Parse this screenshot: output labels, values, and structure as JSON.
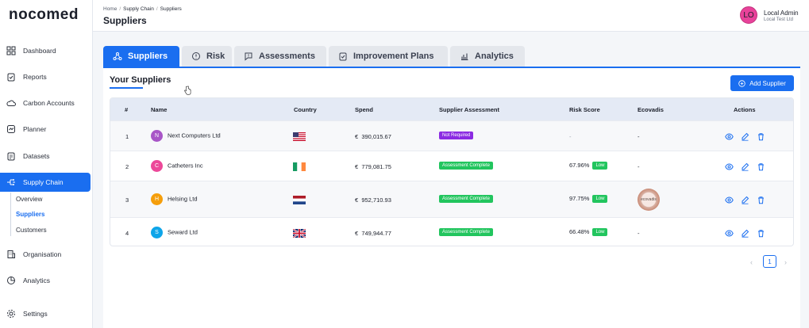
{
  "app": {
    "logo": "nocomed"
  },
  "sidebar": {
    "items": [
      {
        "label": "Dashboard",
        "icon": "grid-icon"
      },
      {
        "label": "Reports",
        "icon": "clipboard-icon"
      },
      {
        "label": "Carbon Accounts",
        "icon": "cloud-icon"
      },
      {
        "label": "Planner",
        "icon": "planner-icon"
      },
      {
        "label": "Datasets",
        "icon": "dataset-icon"
      },
      {
        "label": "Supply Chain",
        "icon": "supply-chain-icon"
      },
      {
        "label": "Organisation",
        "icon": "building-icon"
      },
      {
        "label": "Analytics",
        "icon": "analytics-icon"
      },
      {
        "label": "Settings",
        "icon": "gear-icon"
      }
    ],
    "subitems": [
      {
        "label": "Overview"
      },
      {
        "label": "Suppliers"
      },
      {
        "label": "Customers"
      }
    ]
  },
  "header": {
    "breadcrumb": [
      "Home",
      "Supply Chain",
      "Suppliers"
    ],
    "title": "Suppliers",
    "user": {
      "initials": "LO",
      "name": "Local Admin",
      "org": "Local Test Ltd"
    }
  },
  "tabs": [
    {
      "label": "Suppliers"
    },
    {
      "label": "Risk"
    },
    {
      "label": "Assessments"
    },
    {
      "label": "Improvement Plans"
    },
    {
      "label": "Analytics"
    }
  ],
  "card": {
    "title": "Your Suppliers",
    "add_button": "Add Supplier"
  },
  "table": {
    "columns": [
      "#",
      "Name",
      "Country",
      "Spend",
      "Supplier Assessment",
      "Risk Score",
      "Ecovadis",
      "Actions"
    ],
    "rows": [
      {
        "num": "1",
        "initial": "N",
        "avatar_color": "#a855c7",
        "name": "Next Computers Ltd",
        "flag": "us",
        "currency": "€",
        "spend": "390,015.67",
        "assessment": "Not Required",
        "assessment_color": "purple",
        "risk": "-",
        "risk_level": "",
        "ecovadis": "-"
      },
      {
        "num": "2",
        "initial": "C",
        "avatar_color": "#ec4899",
        "name": "Catheters Inc",
        "flag": "ie",
        "currency": "€",
        "spend": "779,081.75",
        "assessment": "Assessment Complete",
        "assessment_color": "green",
        "risk": "67.96%",
        "risk_level": "Low",
        "ecovadis": "-"
      },
      {
        "num": "3",
        "initial": "H",
        "avatar_color": "#f59e0b",
        "name": "Helsing Ltd",
        "flag": "nl",
        "currency": "€",
        "spend": "952,710.93",
        "assessment": "Assessment Complete",
        "assessment_color": "green",
        "risk": "97.75%",
        "risk_level": "Low",
        "ecovadis": "ecovadis"
      },
      {
        "num": "4",
        "initial": "S",
        "avatar_color": "#0ea5e9",
        "name": "Seward Ltd",
        "flag": "gb",
        "currency": "€",
        "spend": "749,944.77",
        "assessment": "Assessment Complete",
        "assessment_color": "green",
        "risk": "66.48%",
        "risk_level": "Low",
        "ecovadis": "-"
      }
    ]
  },
  "pagination": {
    "prev": "‹",
    "current": "1",
    "next": "›"
  }
}
